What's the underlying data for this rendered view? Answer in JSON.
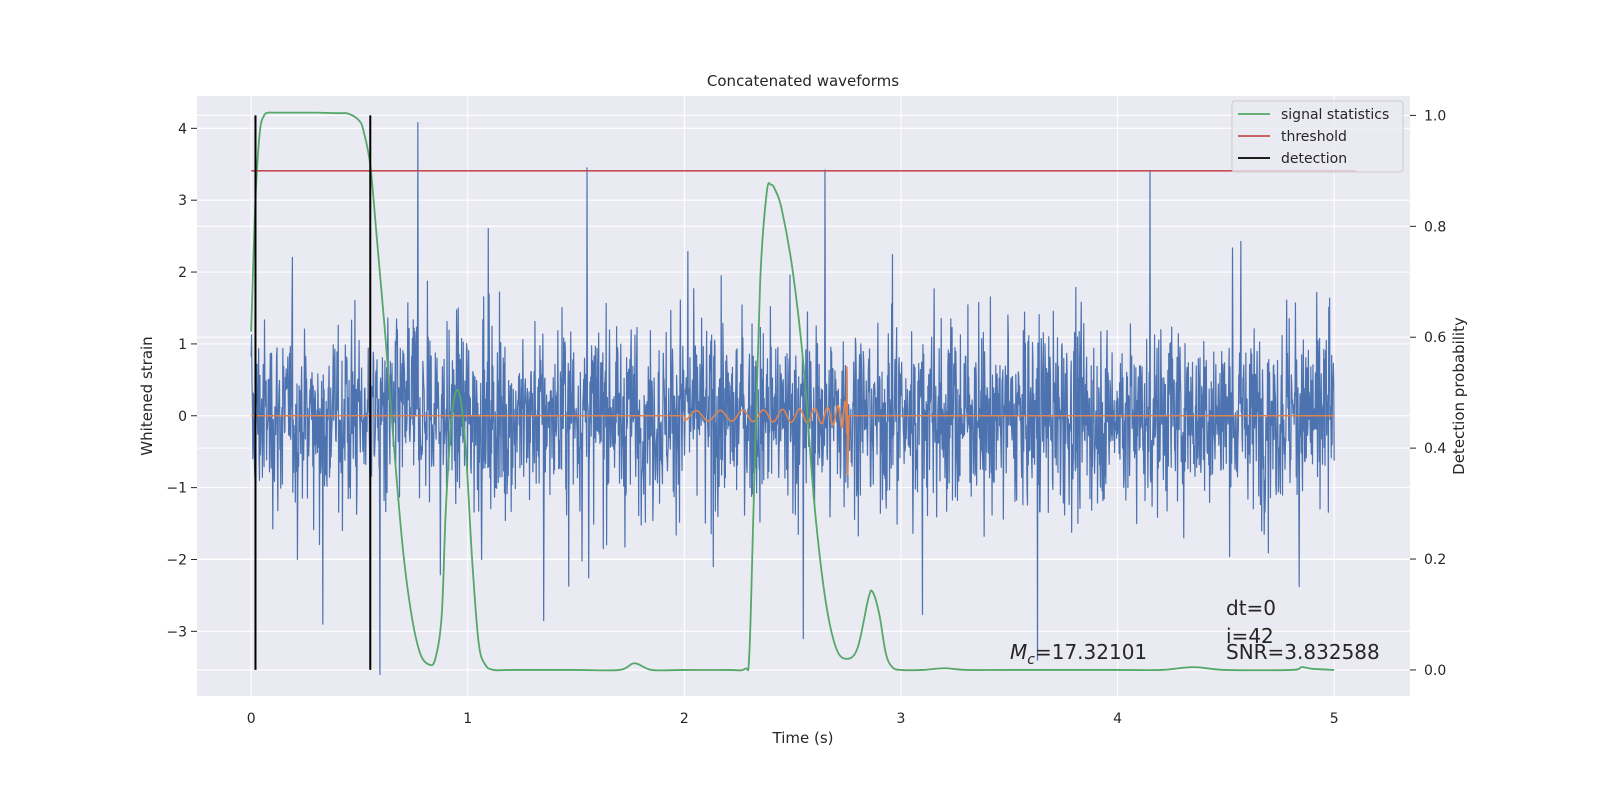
{
  "chart_data": {
    "type": "line",
    "title": "Concatenated waveforms",
    "xlabel": "Time (s)",
    "ylabel": "Whitened strain",
    "ylabel_right": "Detection probability",
    "xlim": [
      -0.25,
      5.35
    ],
    "ylim": [
      -3.9,
      4.45
    ],
    "ylim_right": [
      -0.047,
      1.035
    ],
    "xticks": [
      0,
      1,
      2,
      3,
      4,
      5
    ],
    "yticks": [
      -3,
      -2,
      -1,
      0,
      1,
      2,
      3,
      4
    ],
    "yticks_right": [
      0.0,
      0.2,
      0.4,
      0.6,
      0.8,
      1.0
    ],
    "grid": true,
    "legend_position": "top-right",
    "legend": [
      {
        "label": "signal statistics",
        "color": "#55a868"
      },
      {
        "label": "threshold",
        "color": "#c44e52"
      },
      {
        "label": "detection",
        "color": "#000000"
      }
    ],
    "colors": {
      "strain": "#4c72b0",
      "chirp": "#dd8452",
      "signal": "#55a868",
      "threshold": "#c44e52",
      "detection": "#000000",
      "background": "#eaeaf2",
      "grid": "#ffffff"
    },
    "strain": {
      "x_range": [
        0,
        5
      ],
      "envelope_typical": 1.3,
      "envelope_max": 3.45
    },
    "strain_spikes": [
      {
        "x": 0.77,
        "y": 4.08
      },
      {
        "x": 0.595,
        "y": -3.6
      },
      {
        "x": 1.55,
        "y": 3.45
      },
      {
        "x": 2.65,
        "y": 3.42
      },
      {
        "x": 4.15,
        "y": 3.4
      },
      {
        "x": 0.33,
        "y": -2.9
      },
      {
        "x": 2.55,
        "y": -3.1
      },
      {
        "x": 3.63,
        "y": -3.4
      },
      {
        "x": 1.35,
        "y": -2.85
      }
    ],
    "chirp": {
      "t_start": 2.0,
      "t_merger": 2.75,
      "amp_start": 0.07,
      "amp_peak_pos": 0.68,
      "amp_peak_neg": -0.82
    },
    "signal_statistics": {
      "x": [
        0.0,
        0.02,
        0.04,
        0.06,
        0.08,
        0.1,
        0.2,
        0.3,
        0.4,
        0.45,
        0.5,
        0.52,
        0.55,
        0.58,
        0.62,
        0.66,
        0.7,
        0.74,
        0.78,
        0.82,
        0.85,
        0.88,
        0.9,
        0.93,
        0.96,
        0.99,
        1.02,
        1.05,
        1.08,
        1.12,
        1.2,
        1.5,
        1.7,
        1.77,
        1.85,
        2.0,
        2.2,
        2.28,
        2.3,
        2.32,
        2.35,
        2.38,
        2.4,
        2.42,
        2.45,
        2.5,
        2.55,
        2.6,
        2.65,
        2.7,
        2.75,
        2.8,
        2.85,
        2.87,
        2.9,
        2.93,
        2.96,
        3.0,
        3.1,
        3.2,
        3.3,
        3.5,
        4.0,
        4.2,
        4.35,
        4.5,
        4.8,
        4.85,
        4.9,
        5.0
      ],
      "y": [
        0.61,
        0.85,
        0.97,
        1.0,
        1.005,
        1.005,
        1.005,
        1.005,
        1.004,
        1.003,
        0.99,
        0.97,
        0.91,
        0.78,
        0.6,
        0.4,
        0.22,
        0.1,
        0.03,
        0.01,
        0.02,
        0.1,
        0.3,
        0.47,
        0.5,
        0.4,
        0.2,
        0.05,
        0.01,
        0.0,
        0.0,
        0.0,
        0.0,
        0.012,
        0.0,
        0.0,
        0.0,
        0.002,
        0.03,
        0.3,
        0.7,
        0.86,
        0.875,
        0.865,
        0.83,
        0.72,
        0.55,
        0.3,
        0.13,
        0.04,
        0.02,
        0.04,
        0.13,
        0.14,
        0.1,
        0.03,
        0.005,
        0.0,
        0.0,
        0.003,
        0.0,
        0.0,
        0.0,
        0.0,
        0.005,
        0.0,
        0.0,
        0.005,
        0.002,
        0.0
      ]
    },
    "threshold": {
      "x": [
        0,
        5.1
      ],
      "y": 0.9
    },
    "detections": [
      {
        "x": 0.02,
        "y_range": [
          0.0,
          1.0
        ]
      },
      {
        "x": 0.55,
        "y_range": [
          0.0,
          1.0
        ]
      }
    ]
  },
  "annotations": {
    "mc_symbol": "M",
    "mc_subscript": "c",
    "mc_value": "=17.32101",
    "dt": "dt=0",
    "i": "i=42",
    "snr": "SNR=3.832588"
  }
}
